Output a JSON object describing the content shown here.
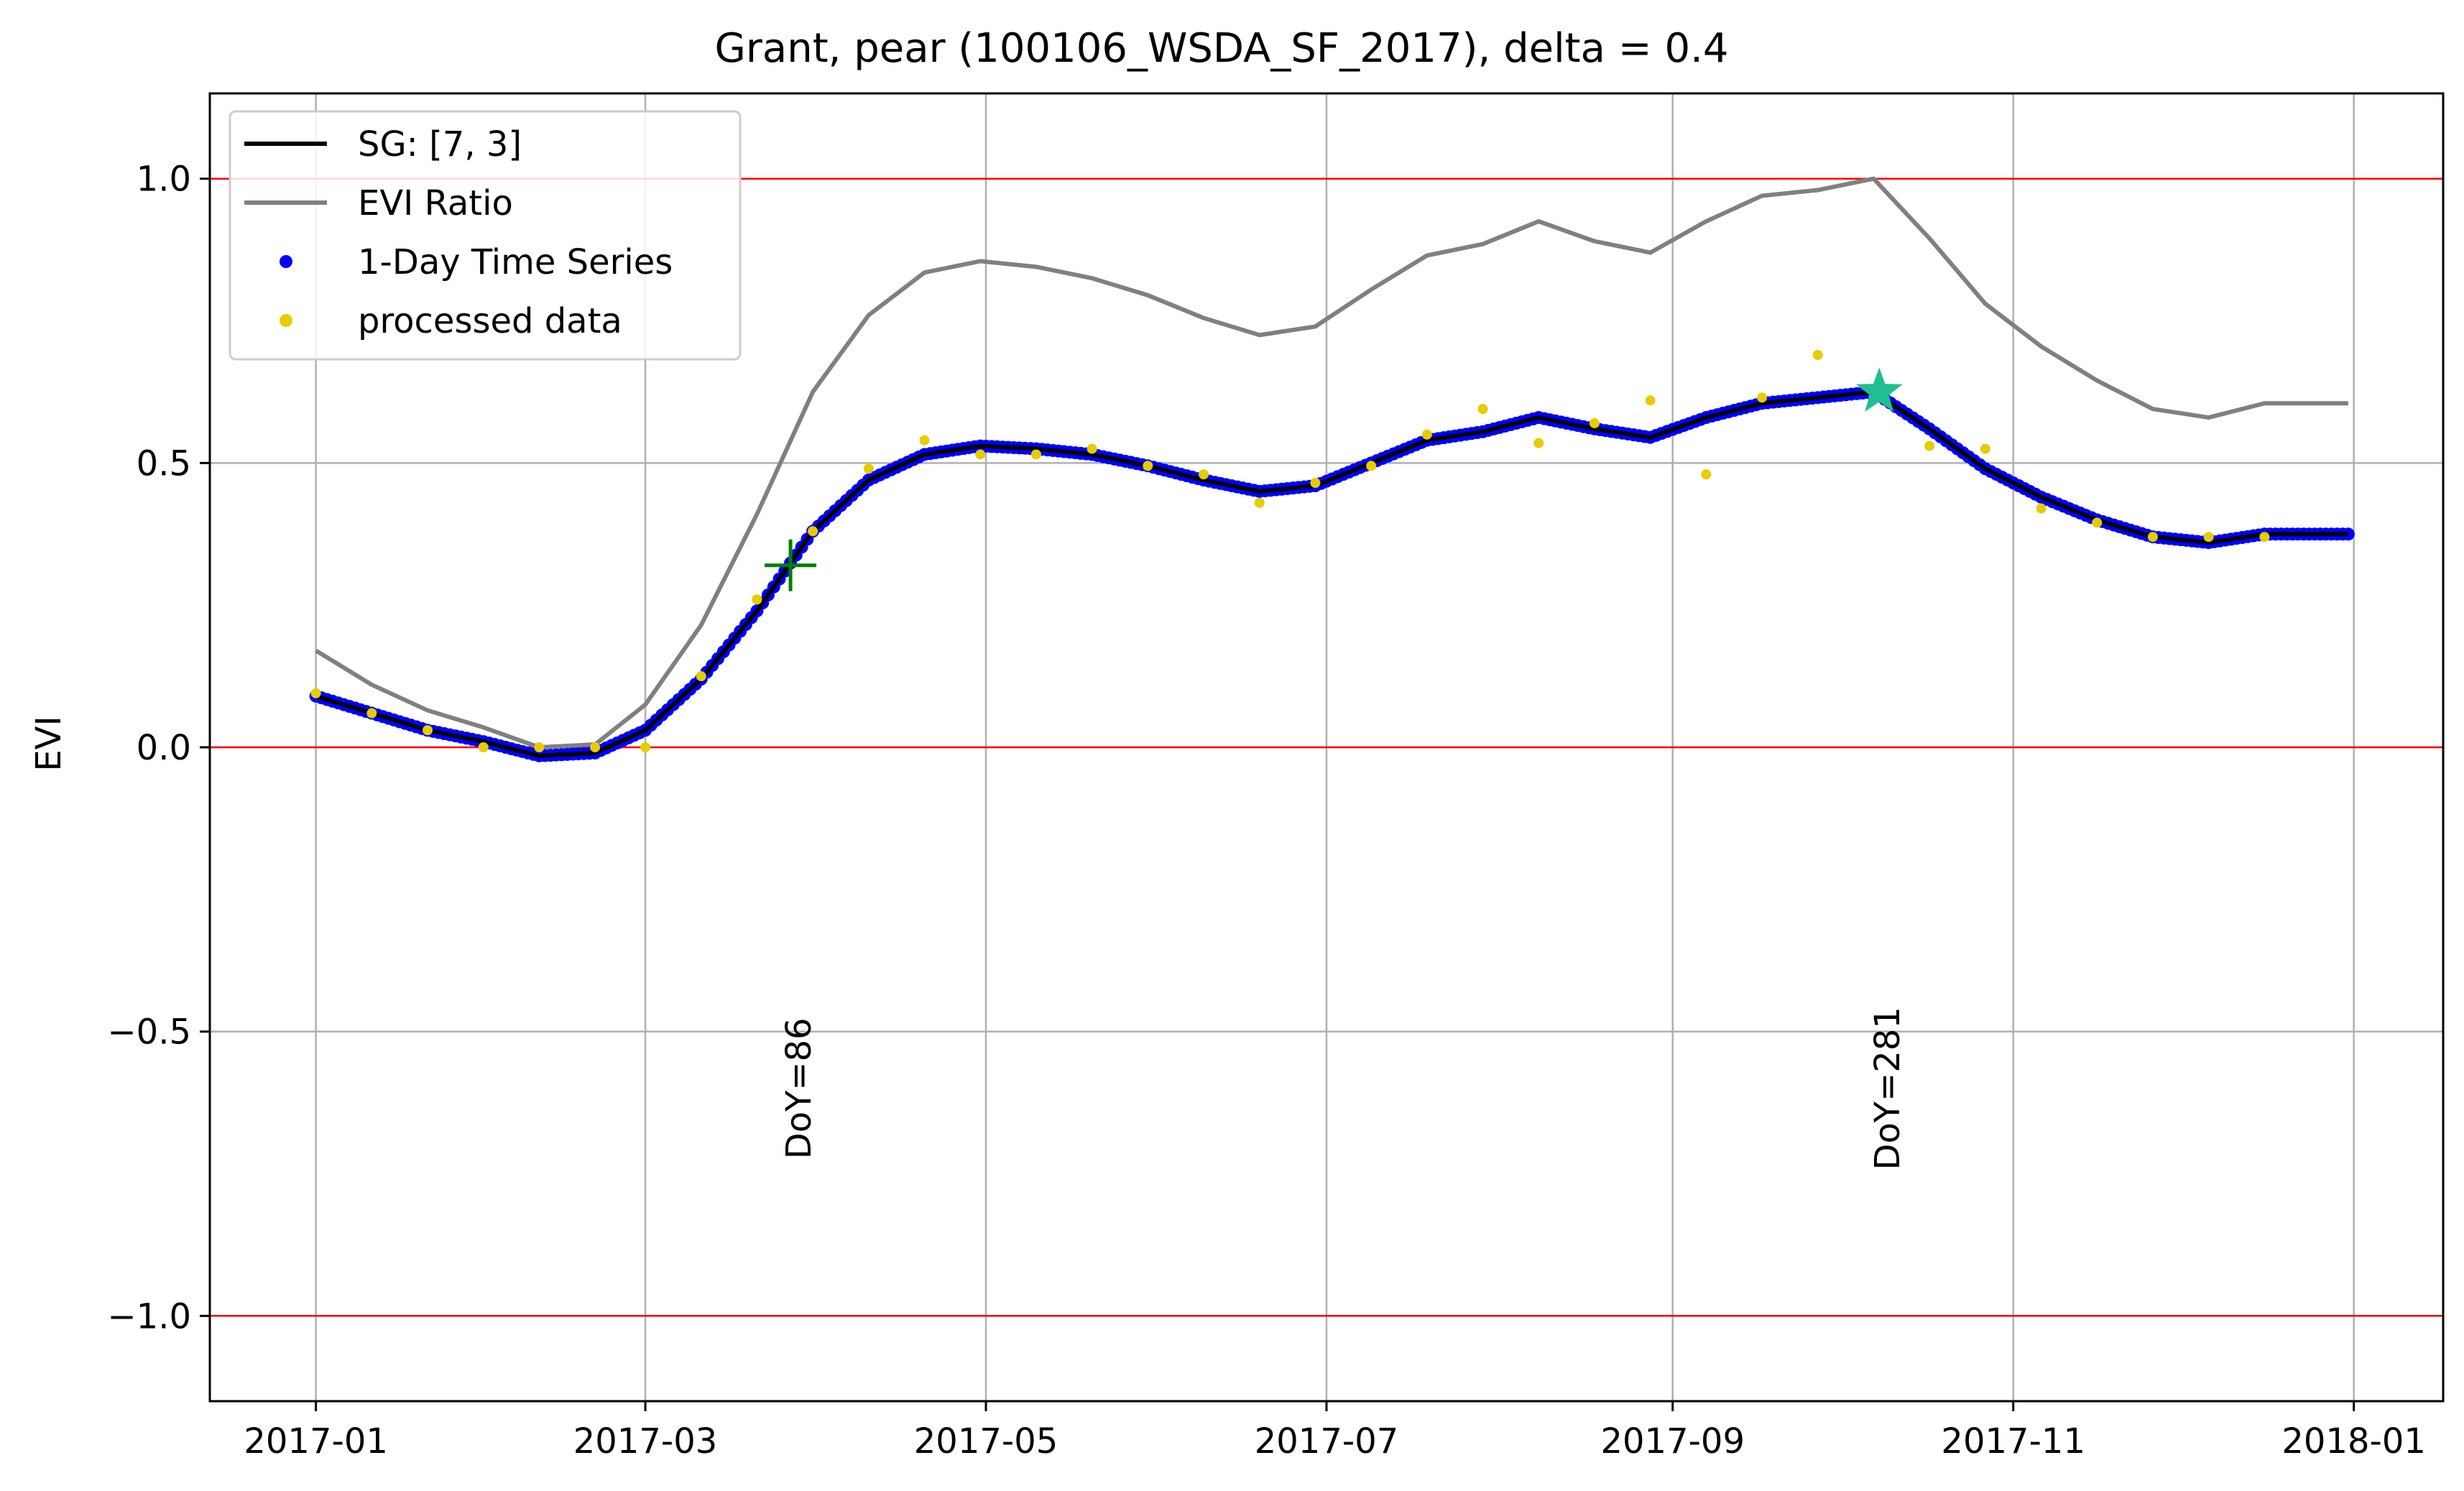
{
  "chart_data": {
    "type": "line",
    "title": "Grant, pear (100106_WSDA_SF_2017), delta = 0.4",
    "xlabel": "",
    "ylabel": "EVI",
    "x_axis": {
      "type": "date",
      "range": [
        "2016-12-13",
        "2018-01-17"
      ],
      "ticks": [
        "2017-01-01",
        "2017-03-01",
        "2017-05-01",
        "2017-07-01",
        "2017-09-01",
        "2017-11-01",
        "2018-01-01"
      ],
      "tick_labels": [
        "2017-01",
        "2017-03",
        "2017-05",
        "2017-07",
        "2017-09",
        "2017-11",
        "2018-01"
      ]
    },
    "y_axis": {
      "range": [
        -1.15,
        1.15
      ],
      "ticks": [
        -1.0,
        -0.5,
        0.0,
        0.5,
        1.0
      ],
      "tick_labels": [
        "−1.0",
        "−0.5",
        "0.0",
        "0.5",
        "1.0"
      ]
    },
    "grid": true,
    "reference_lines": {
      "y": [
        -1.0,
        0.0,
        1.0
      ],
      "color": "#ff0000"
    },
    "legend": {
      "position": "top-left",
      "entries": [
        {
          "label": "SG: [7, 3]",
          "kind": "line",
          "color": "#000000"
        },
        {
          "label": "EVI Ratio",
          "kind": "line",
          "color": "#808080"
        },
        {
          "label": "1-Day Time Series",
          "kind": "dot",
          "color": "#0000ff"
        },
        {
          "label": "processed data",
          "kind": "dot",
          "color": "#e6cc00"
        }
      ]
    },
    "series": [
      {
        "name": "SG: [7, 3]",
        "kind": "line",
        "color": "#000000",
        "x": [
          "2017-01-01",
          "2017-01-11",
          "2017-01-21",
          "2017-01-31",
          "2017-02-10",
          "2017-02-20",
          "2017-03-01",
          "2017-03-11",
          "2017-03-21",
          "2017-03-31",
          "2017-04-10",
          "2017-04-20",
          "2017-04-30",
          "2017-05-10",
          "2017-05-20",
          "2017-05-30",
          "2017-06-09",
          "2017-06-19",
          "2017-06-29",
          "2017-07-09",
          "2017-07-19",
          "2017-07-29",
          "2017-08-08",
          "2017-08-18",
          "2017-08-28",
          "2017-09-07",
          "2017-09-17",
          "2017-09-27",
          "2017-10-07",
          "2017-10-17",
          "2017-10-27",
          "2017-11-06",
          "2017-11-16",
          "2017-11-26",
          "2017-12-06",
          "2017-12-16",
          "2017-12-31"
        ],
        "y": [
          0.09,
          0.06,
          0.03,
          0.01,
          -0.015,
          -0.01,
          0.03,
          0.12,
          0.24,
          0.38,
          0.47,
          0.515,
          0.53,
          0.525,
          0.515,
          0.495,
          0.47,
          0.45,
          0.46,
          0.5,
          0.54,
          0.555,
          0.58,
          0.56,
          0.545,
          0.58,
          0.605,
          0.615,
          0.625,
          0.56,
          0.49,
          0.44,
          0.4,
          0.37,
          0.36,
          0.375,
          0.375
        ]
      },
      {
        "name": "EVI Ratio",
        "kind": "line",
        "color": "#808080",
        "x": [
          "2017-01-01",
          "2017-01-11",
          "2017-01-21",
          "2017-01-31",
          "2017-02-10",
          "2017-02-20",
          "2017-03-01",
          "2017-03-11",
          "2017-03-21",
          "2017-03-31",
          "2017-04-10",
          "2017-04-20",
          "2017-04-30",
          "2017-05-10",
          "2017-05-20",
          "2017-05-30",
          "2017-06-09",
          "2017-06-19",
          "2017-06-29",
          "2017-07-09",
          "2017-07-19",
          "2017-07-29",
          "2017-08-08",
          "2017-08-18",
          "2017-08-28",
          "2017-09-07",
          "2017-09-17",
          "2017-09-27",
          "2017-10-07",
          "2017-10-17",
          "2017-10-27",
          "2017-11-06",
          "2017-11-16",
          "2017-11-26",
          "2017-12-06",
          "2017-12-16",
          "2017-12-31"
        ],
        "y": [
          0.17,
          0.11,
          0.065,
          0.035,
          0.0,
          0.005,
          0.075,
          0.215,
          0.41,
          0.625,
          0.76,
          0.835,
          0.855,
          0.845,
          0.825,
          0.795,
          0.755,
          0.725,
          0.74,
          0.805,
          0.865,
          0.885,
          0.925,
          0.89,
          0.87,
          0.925,
          0.97,
          0.98,
          1.0,
          0.895,
          0.78,
          0.705,
          0.645,
          0.595,
          0.58,
          0.605,
          0.605
        ]
      },
      {
        "name": "1-Day Time Series",
        "kind": "dots",
        "color": "#0000ff",
        "daily_from": "SG: [7, 3]"
      },
      {
        "name": "processed data",
        "kind": "scatter",
        "color": "#e6cc00",
        "x": [
          "2017-01-01",
          "2017-01-11",
          "2017-01-21",
          "2017-01-31",
          "2017-02-10",
          "2017-02-20",
          "2017-03-01",
          "2017-03-11",
          "2017-03-21",
          "2017-03-31",
          "2017-04-10",
          "2017-04-20",
          "2017-04-30",
          "2017-05-10",
          "2017-05-20",
          "2017-05-30",
          "2017-06-09",
          "2017-06-19",
          "2017-06-29",
          "2017-07-09",
          "2017-07-19",
          "2017-07-29",
          "2017-08-08",
          "2017-08-18",
          "2017-08-28",
          "2017-09-07",
          "2017-09-17",
          "2017-09-27",
          "2017-10-07",
          "2017-10-17",
          "2017-10-27",
          "2017-11-06",
          "2017-11-16",
          "2017-11-26",
          "2017-12-06",
          "2017-12-16"
        ],
        "y": [
          0.095,
          0.06,
          0.03,
          0.0,
          0.0,
          0.0,
          0.0,
          0.125,
          0.26,
          0.38,
          0.49,
          0.54,
          0.515,
          0.515,
          0.525,
          0.495,
          0.48,
          0.43,
          0.465,
          0.495,
          0.55,
          0.595,
          0.535,
          0.57,
          0.61,
          0.48,
          0.615,
          0.69,
          0.615,
          0.53,
          0.525,
          0.42,
          0.395,
          0.37,
          0.37,
          0.37
        ]
      }
    ],
    "markers": [
      {
        "kind": "plus",
        "x": "2017-03-27",
        "y": 0.32,
        "color": "#008000"
      },
      {
        "kind": "star",
        "x": "2017-10-08",
        "y": 0.625,
        "color": "#1fbf8f"
      }
    ],
    "annotations": [
      {
        "text": "DoY=86",
        "x": "2017-03-27",
        "y": -0.6,
        "rotation": -90,
        "color": "#008000"
      },
      {
        "text": "DoY=281",
        "x": "2017-10-08",
        "y": -0.6,
        "rotation": -90,
        "color": "#808080"
      }
    ]
  }
}
